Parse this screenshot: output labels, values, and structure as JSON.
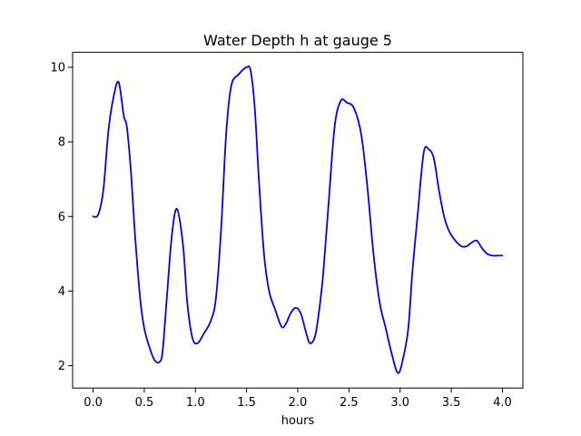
{
  "chart_data": {
    "type": "line",
    "title": "Water Depth h at gauge 5",
    "xlabel": "hours",
    "ylabel": "",
    "xlim": [
      -0.2,
      4.2
    ],
    "ylim": [
      1.4,
      10.4
    ],
    "x_ticks": [
      0.0,
      0.5,
      1.0,
      1.5,
      2.0,
      2.5,
      3.0,
      3.5,
      4.0
    ],
    "x_tick_labels": [
      "0.0",
      "0.5",
      "1.0",
      "1.5",
      "2.0",
      "2.5",
      "3.0",
      "3.5",
      "4.0"
    ],
    "y_ticks": [
      2,
      4,
      6,
      8,
      10
    ],
    "y_tick_labels": [
      "2",
      "4",
      "6",
      "8",
      "10"
    ],
    "grid": false,
    "legend": "none",
    "series": [
      {
        "color": "#0000ff",
        "x": [
          0.0,
          0.05,
          0.1,
          0.15,
          0.2,
          0.25,
          0.3,
          0.33,
          0.37,
          0.41,
          0.46,
          0.5,
          0.55,
          0.6,
          0.65,
          0.68,
          0.72,
          0.77,
          0.82,
          0.88,
          0.92,
          0.97,
          1.02,
          1.08,
          1.15,
          1.2,
          1.25,
          1.3,
          1.35,
          1.42,
          1.5,
          1.54,
          1.58,
          1.62,
          1.67,
          1.72,
          1.78,
          1.84,
          1.88,
          1.93,
          1.98,
          2.03,
          2.08,
          2.12,
          2.17,
          2.21,
          2.25,
          2.3,
          2.36,
          2.42,
          2.48,
          2.55,
          2.62,
          2.68,
          2.74,
          2.8,
          2.86,
          2.92,
          2.98,
          3.03,
          3.08,
          3.12,
          3.17,
          3.23,
          3.28,
          3.33,
          3.38,
          3.43,
          3.48,
          3.54,
          3.6,
          3.65,
          3.7,
          3.75,
          3.8,
          3.85,
          3.9,
          3.95,
          4.0
        ],
        "values": [
          6.0,
          6.05,
          6.7,
          8.3,
          9.2,
          9.6,
          8.7,
          8.4,
          7.2,
          5.5,
          3.8,
          3.0,
          2.5,
          2.15,
          2.1,
          2.4,
          3.8,
          5.5,
          6.2,
          5.2,
          3.7,
          2.75,
          2.6,
          2.85,
          3.2,
          3.8,
          5.6,
          8.2,
          9.5,
          9.8,
          10.0,
          9.9,
          8.9,
          7.0,
          5.0,
          4.0,
          3.5,
          3.05,
          3.1,
          3.4,
          3.55,
          3.4,
          2.9,
          2.6,
          2.8,
          3.5,
          4.5,
          6.3,
          8.4,
          9.1,
          9.05,
          8.9,
          8.2,
          6.8,
          5.0,
          3.7,
          3.0,
          2.3,
          1.8,
          2.2,
          3.0,
          4.5,
          6.0,
          7.7,
          7.8,
          7.55,
          6.7,
          6.0,
          5.6,
          5.35,
          5.2,
          5.2,
          5.3,
          5.35,
          5.15,
          5.0,
          4.95,
          4.95,
          4.95
        ]
      }
    ]
  }
}
